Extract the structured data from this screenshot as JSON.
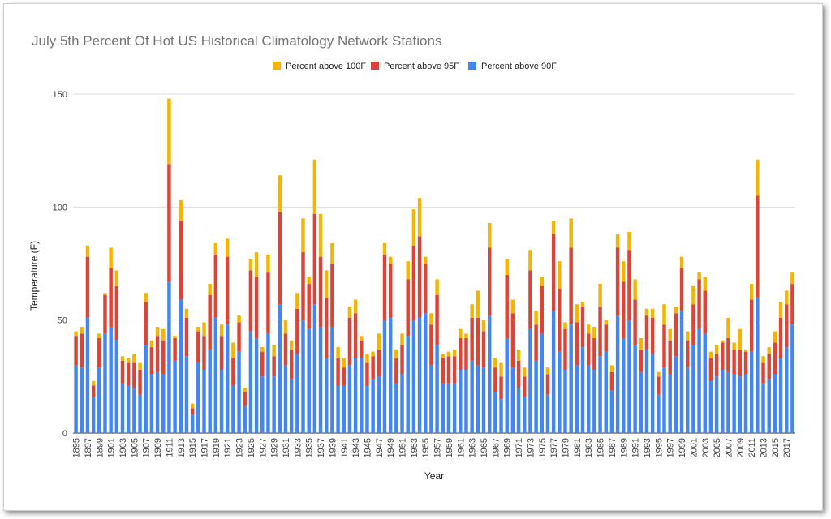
{
  "chart_data": {
    "type": "bar",
    "stacked": true,
    "title": "July 5th Percent Of Hot US Historical Climatology Network Stations",
    "xlabel": "Year",
    "ylabel": "Temperature (F)",
    "ylim": [
      0,
      150
    ],
    "yticks": [
      0,
      50,
      100,
      150
    ],
    "grid": true,
    "legend_position": "top",
    "colors": {
      "above90": "#4285f4",
      "above95": "#db4437",
      "above100": "#f4b400"
    },
    "categories": [
      "1895",
      "1896",
      "1897",
      "1898",
      "1899",
      "1900",
      "1901",
      "1902",
      "1903",
      "1904",
      "1905",
      "1906",
      "1907",
      "1908",
      "1909",
      "1910",
      "1911",
      "1912",
      "1913",
      "1914",
      "1915",
      "1916",
      "1917",
      "1918",
      "1919",
      "1920",
      "1921",
      "1922",
      "1923",
      "1924",
      "1925",
      "1926",
      "1927",
      "1928",
      "1929",
      "1930",
      "1931",
      "1932",
      "1933",
      "1934",
      "1935",
      "1936",
      "1937",
      "1938",
      "1939",
      "1940",
      "1941",
      "1942",
      "1943",
      "1944",
      "1945",
      "1946",
      "1947",
      "1948",
      "1949",
      "1950",
      "1951",
      "1952",
      "1953",
      "1954",
      "1955",
      "1956",
      "1957",
      "1958",
      "1959",
      "1960",
      "1961",
      "1962",
      "1963",
      "1964",
      "1965",
      "1966",
      "1967",
      "1968",
      "1969",
      "1970",
      "1971",
      "1972",
      "1973",
      "1974",
      "1975",
      "1976",
      "1977",
      "1978",
      "1979",
      "1980",
      "1981",
      "1982",
      "1983",
      "1984",
      "1985",
      "1986",
      "1987",
      "1988",
      "1989",
      "1990",
      "1991",
      "1992",
      "1993",
      "1994",
      "1995",
      "1996",
      "1997",
      "1998",
      "1999",
      "2000",
      "2001",
      "2002",
      "2003",
      "2004",
      "2005",
      "2006",
      "2007",
      "2008",
      "2009",
      "2010",
      "2011",
      "2012",
      "2013",
      "2014",
      "2015",
      "2016",
      "2017",
      "2018"
    ],
    "series": [
      {
        "name": "Percent above 90F",
        "values": [
          30,
          29,
          51,
          16,
          29,
          44,
          47,
          41,
          22,
          21,
          20,
          17,
          39,
          26,
          27,
          26,
          67,
          32,
          59,
          34,
          8,
          31,
          28,
          37,
          51,
          28,
          48,
          21,
          36,
          12,
          45,
          42,
          25,
          44,
          25,
          57,
          30,
          24,
          35,
          50,
          46,
          57,
          47,
          33,
          47,
          21,
          21,
          30,
          33,
          33,
          21,
          24,
          25,
          50,
          51,
          22,
          26,
          43,
          50,
          51,
          53,
          30,
          39,
          22,
          22,
          22,
          28,
          28,
          32,
          30,
          29,
          52,
          18,
          15,
          42,
          29,
          20,
          16,
          46,
          32,
          44,
          17,
          54,
          36,
          28,
          48,
          30,
          38,
          30,
          28,
          34,
          36,
          19,
          52,
          42,
          50,
          39,
          27,
          37,
          35,
          17,
          29,
          26,
          34,
          54,
          29,
          39,
          46,
          44,
          23,
          25,
          28,
          27,
          26,
          25,
          26,
          36,
          60,
          22,
          24,
          26,
          33,
          38,
          48
        ]
      },
      {
        "name": "Percent above 95F",
        "values": [
          13,
          15,
          27,
          5,
          13,
          17,
          26,
          24,
          10,
          10,
          11,
          11,
          19,
          12,
          16,
          15,
          52,
          10,
          35,
          17,
          3,
          14,
          15,
          24,
          28,
          15,
          30,
          12,
          13,
          6,
          27,
          27,
          11,
          27,
          9,
          41,
          14,
          13,
          20,
          30,
          20,
          40,
          31,
          27,
          28,
          12,
          8,
          21,
          20,
          8,
          10,
          10,
          12,
          29,
          24,
          11,
          13,
          25,
          33,
          36,
          22,
          18,
          22,
          11,
          12,
          12,
          14,
          14,
          19,
          21,
          16,
          30,
          11,
          10,
          28,
          24,
          12,
          9,
          26,
          16,
          21,
          9,
          34,
          28,
          18,
          34,
          19,
          18,
          14,
          14,
          22,
          12,
          8,
          30,
          25,
          31,
          20,
          10,
          15,
          16,
          8,
          19,
          15,
          19,
          19,
          12,
          18,
          22,
          19,
          10,
          10,
          12,
          15,
          11,
          12,
          10,
          23,
          45,
          9,
          11,
          14,
          18,
          19,
          18
        ]
      },
      {
        "name": "Percent above 100F",
        "values": [
          2,
          3,
          5,
          2,
          2,
          1,
          9,
          7,
          2,
          2,
          4,
          3,
          4,
          3,
          4,
          5,
          29,
          1,
          9,
          4,
          2,
          2,
          6,
          5,
          5,
          5,
          8,
          7,
          3,
          2,
          5,
          11,
          2,
          8,
          5,
          16,
          6,
          4,
          7,
          15,
          3,
          24,
          19,
          12,
          9,
          5,
          4,
          5,
          6,
          2,
          4,
          2,
          7,
          5,
          3,
          4,
          5,
          8,
          16,
          17,
          3,
          5,
          7,
          2,
          2,
          3,
          4,
          2,
          6,
          12,
          5,
          11,
          4,
          6,
          7,
          6,
          5,
          4,
          9,
          6,
          4,
          3,
          6,
          12,
          3,
          13,
          8,
          2,
          4,
          5,
          10,
          2,
          3,
          6,
          9,
          8,
          9,
          5,
          3,
          4,
          2,
          9,
          5,
          3,
          5,
          4,
          8,
          3,
          6,
          3,
          4,
          1,
          9,
          3,
          9,
          1,
          7,
          16,
          3,
          3,
          5,
          7,
          6,
          5
        ]
      }
    ]
  }
}
